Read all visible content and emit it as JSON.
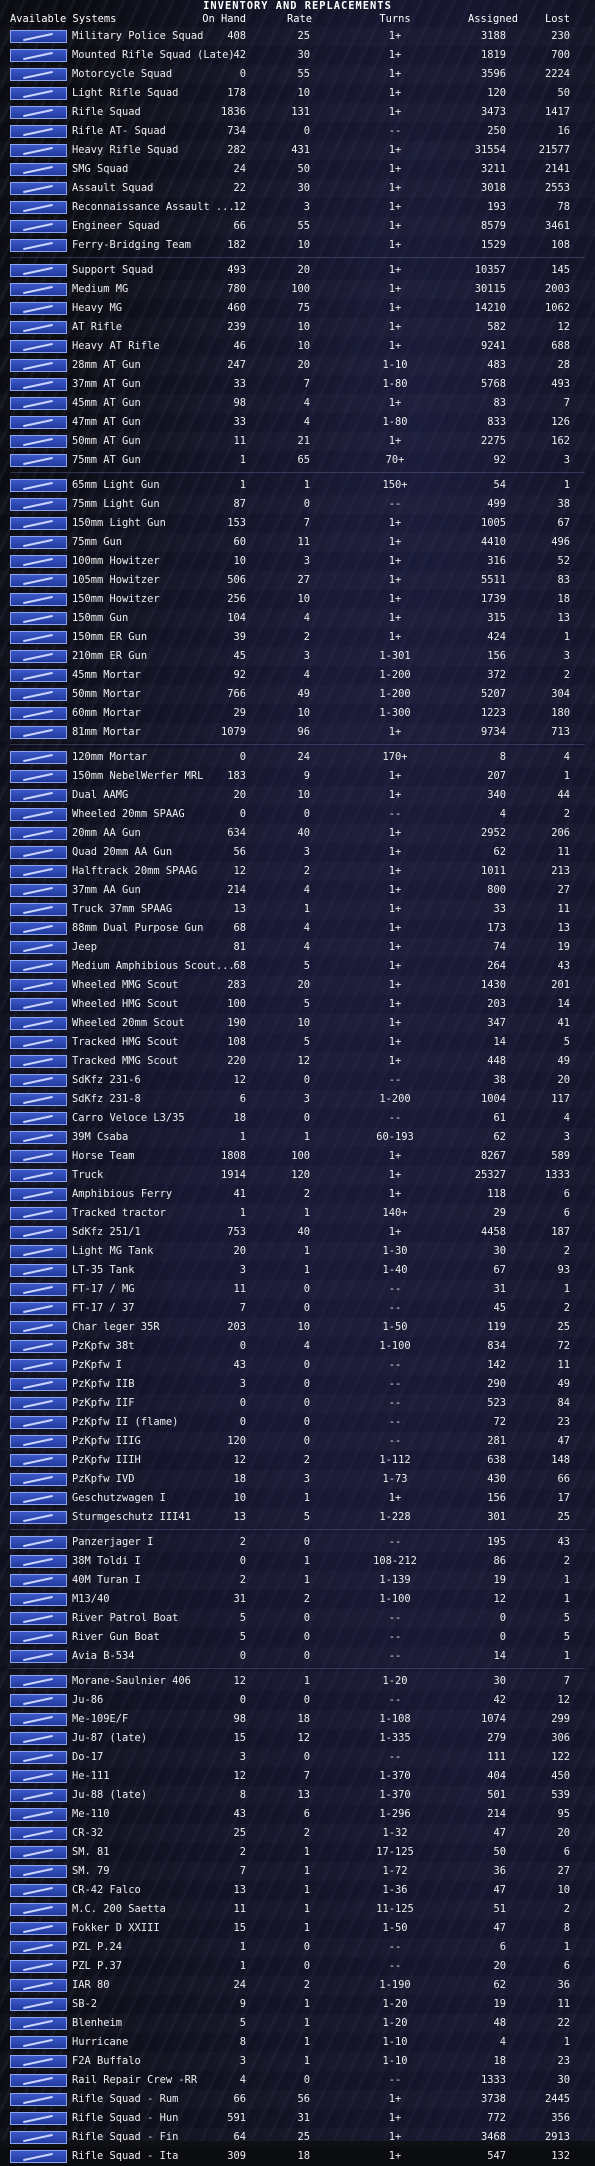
{
  "title": "INVENTORY AND REPLACEMENTS",
  "columns": {
    "systems": "Available Systems",
    "onhand": "On Hand",
    "rate": "Rate",
    "turns": "Turns",
    "assigned": "Assigned",
    "lost": "Lost"
  },
  "rows": [
    [
      "Military Police Squad",
      "408",
      "25",
      "1+",
      "3188",
      "230"
    ],
    [
      "Mounted Rifle Squad (Late)",
      "42",
      "30",
      "1+",
      "1819",
      "700"
    ],
    [
      "Motorcycle Squad",
      "0",
      "55",
      "1+",
      "3596",
      "2224"
    ],
    [
      "Light Rifle Squad",
      "178",
      "10",
      "1+",
      "120",
      "50"
    ],
    [
      "Rifle Squad",
      "1836",
      "131",
      "1+",
      "3473",
      "1417"
    ],
    [
      "Rifle AT- Squad",
      "734",
      "0",
      "--",
      "250",
      "16"
    ],
    [
      "Heavy Rifle Squad",
      "282",
      "431",
      "1+",
      "31554",
      "21577"
    ],
    [
      "SMG Squad",
      "24",
      "50",
      "1+",
      "3211",
      "2141"
    ],
    [
      "Assault Squad",
      "22",
      "30",
      "1+",
      "3018",
      "2553"
    ],
    [
      "Reconnaissance Assault ...",
      "12",
      "3",
      "1+",
      "193",
      "78"
    ],
    [
      "Engineer Squad",
      "66",
      "55",
      "1+",
      "8579",
      "3461"
    ],
    [
      "Ferry-Bridging Team",
      "182",
      "10",
      "1+",
      "1529",
      "108"
    ],
    [
      "Support Squad",
      "493",
      "20",
      "1+",
      "10357",
      "145"
    ],
    [
      "Medium MG",
      "780",
      "100",
      "1+",
      "30115",
      "2003"
    ],
    [
      "Heavy MG",
      "460",
      "75",
      "1+",
      "14210",
      "1062"
    ],
    [
      "AT Rifle",
      "239",
      "10",
      "1+",
      "582",
      "12"
    ],
    [
      "Heavy AT Rifle",
      "46",
      "10",
      "1+",
      "9241",
      "688"
    ],
    [
      "28mm AT Gun",
      "247",
      "20",
      "1-10",
      "483",
      "28"
    ],
    [
      "37mm AT Gun",
      "33",
      "7",
      "1-80",
      "5768",
      "493"
    ],
    [
      "45mm AT Gun",
      "98",
      "4",
      "1+",
      "83",
      "7"
    ],
    [
      "47mm AT Gun",
      "33",
      "4",
      "1-80",
      "833",
      "126"
    ],
    [
      "50mm AT Gun",
      "11",
      "21",
      "1+",
      "2275",
      "162"
    ],
    [
      "75mm AT Gun",
      "1",
      "65",
      "70+",
      "92",
      "3"
    ],
    [
      "65mm Light Gun",
      "1",
      "1",
      "150+",
      "54",
      "1"
    ],
    [
      "75mm Light Gun",
      "87",
      "0",
      "--",
      "499",
      "38"
    ],
    [
      "150mm Light Gun",
      "153",
      "7",
      "1+",
      "1005",
      "67"
    ],
    [
      "75mm Gun",
      "60",
      "11",
      "1+",
      "4410",
      "496"
    ],
    [
      "100mm Howitzer",
      "10",
      "3",
      "1+",
      "316",
      "52"
    ],
    [
      "105mm Howitzer",
      "506",
      "27",
      "1+",
      "5511",
      "83"
    ],
    [
      "150mm Howitzer",
      "256",
      "10",
      "1+",
      "1739",
      "18"
    ],
    [
      "150mm Gun",
      "104",
      "4",
      "1+",
      "315",
      "13"
    ],
    [
      "150mm ER Gun",
      "39",
      "2",
      "1+",
      "424",
      "1"
    ],
    [
      "210mm ER Gun",
      "45",
      "3",
      "1-301",
      "156",
      "3"
    ],
    [
      "45mm Mortar",
      "92",
      "4",
      "1-200",
      "372",
      "2"
    ],
    [
      "50mm Mortar",
      "766",
      "49",
      "1-200",
      "5207",
      "304"
    ],
    [
      "60mm Mortar",
      "29",
      "10",
      "1-300",
      "1223",
      "180"
    ],
    [
      "81mm Mortar",
      "1079",
      "96",
      "1+",
      "9734",
      "713"
    ],
    [
      "120mm Mortar",
      "0",
      "24",
      "170+",
      "8",
      "4"
    ],
    [
      "150mm NebelWerfer MRL",
      "183",
      "9",
      "1+",
      "207",
      "1"
    ],
    [
      "Dual AAMG",
      "20",
      "10",
      "1+",
      "340",
      "44"
    ],
    [
      "Wheeled 20mm SPAAG",
      "0",
      "0",
      "--",
      "4",
      "2"
    ],
    [
      "20mm AA Gun",
      "634",
      "40",
      "1+",
      "2952",
      "206"
    ],
    [
      "Quad 20mm AA Gun",
      "56",
      "3",
      "1+",
      "62",
      "11"
    ],
    [
      "Halftrack 20mm SPAAG",
      "12",
      "2",
      "1+",
      "1011",
      "213"
    ],
    [
      "37mm AA Gun",
      "214",
      "4",
      "1+",
      "800",
      "27"
    ],
    [
      "Truck 37mm SPAAG",
      "13",
      "1",
      "1+",
      "33",
      "11"
    ],
    [
      "88mm Dual Purpose Gun",
      "68",
      "4",
      "1+",
      "173",
      "13"
    ],
    [
      "Jeep",
      "81",
      "4",
      "1+",
      "74",
      "19"
    ],
    [
      "Medium Amphibious Scout...",
      "68",
      "5",
      "1+",
      "264",
      "43"
    ],
    [
      "Wheeled MMG Scout",
      "283",
      "20",
      "1+",
      "1430",
      "201"
    ],
    [
      "Wheeled HMG Scout",
      "100",
      "5",
      "1+",
      "203",
      "14"
    ],
    [
      "Wheeled 20mm Scout",
      "190",
      "10",
      "1+",
      "347",
      "41"
    ],
    [
      "Tracked HMG Scout",
      "108",
      "5",
      "1+",
      "14",
      "5"
    ],
    [
      "Tracked MMG Scout",
      "220",
      "12",
      "1+",
      "448",
      "49"
    ],
    [
      "SdKfz 231-6",
      "12",
      "0",
      "--",
      "38",
      "20"
    ],
    [
      "SdKfz 231-8",
      "6",
      "3",
      "1-200",
      "1004",
      "117"
    ],
    [
      "Carro Veloce L3/35",
      "18",
      "0",
      "--",
      "61",
      "4"
    ],
    [
      "39M Csaba",
      "1",
      "1",
      "60-193",
      "62",
      "3"
    ],
    [
      "Horse Team",
      "1808",
      "100",
      "1+",
      "8267",
      "589"
    ],
    [
      "Truck",
      "1914",
      "120",
      "1+",
      "25327",
      "1333"
    ],
    [
      "Amphibious Ferry",
      "41",
      "2",
      "1+",
      "118",
      "6"
    ],
    [
      "Tracked tractor",
      "1",
      "1",
      "140+",
      "29",
      "6"
    ],
    [
      "SdKfz 251/1",
      "753",
      "40",
      "1+",
      "4458",
      "187"
    ],
    [
      "Light MG Tank",
      "20",
      "1",
      "1-30",
      "30",
      "2"
    ],
    [
      "LT-35 Tank",
      "3",
      "1",
      "1-40",
      "67",
      "93"
    ],
    [
      "FT-17 / MG",
      "11",
      "0",
      "--",
      "31",
      "1"
    ],
    [
      "FT-17 / 37",
      "7",
      "0",
      "--",
      "45",
      "2"
    ],
    [
      "Char leger 35R",
      "203",
      "10",
      "1-50",
      "119",
      "25"
    ],
    [
      "PzKpfw 38t",
      "0",
      "4",
      "1-100",
      "834",
      "72"
    ],
    [
      "PzKpfw I",
      "43",
      "0",
      "--",
      "142",
      "11"
    ],
    [
      "PzKpfw IIB",
      "3",
      "0",
      "--",
      "290",
      "49"
    ],
    [
      "PzKpfw IIF",
      "0",
      "0",
      "--",
      "523",
      "84"
    ],
    [
      "PzKpfw II (flame)",
      "0",
      "0",
      "--",
      "72",
      "23"
    ],
    [
      "PzKpfw IIIG",
      "120",
      "0",
      "--",
      "281",
      "47"
    ],
    [
      "PzKpfw IIIH",
      "12",
      "2",
      "1-112",
      "638",
      "148"
    ],
    [
      "PzKpfw IVD",
      "18",
      "3",
      "1-73",
      "430",
      "66"
    ],
    [
      "Geschutzwagen I",
      "10",
      "1",
      "1+",
      "156",
      "17"
    ],
    [
      "Sturmgeschutz III41",
      "13",
      "5",
      "1-228",
      "301",
      "25"
    ],
    [
      "Panzerjager I",
      "2",
      "0",
      "--",
      "195",
      "43"
    ],
    [
      "38M Toldi I",
      "0",
      "1",
      "108-212",
      "86",
      "2"
    ],
    [
      "40M Turan I",
      "2",
      "1",
      "1-139",
      "19",
      "1"
    ],
    [
      "M13/40",
      "31",
      "2",
      "1-100",
      "12",
      "1"
    ],
    [
      "River Patrol Boat",
      "5",
      "0",
      "--",
      "0",
      "5"
    ],
    [
      "River Gun Boat",
      "5",
      "0",
      "--",
      "0",
      "5"
    ],
    [
      "Avia B-534",
      "0",
      "0",
      "--",
      "14",
      "1"
    ],
    [
      "Morane-Saulnier 406",
      "12",
      "1",
      "1-20",
      "30",
      "7"
    ],
    [
      "Ju-86",
      "0",
      "0",
      "--",
      "42",
      "12"
    ],
    [
      "Me-109E/F",
      "98",
      "18",
      "1-108",
      "1074",
      "299"
    ],
    [
      "Ju-87 (late)",
      "15",
      "12",
      "1-335",
      "279",
      "306"
    ],
    [
      "Do-17",
      "3",
      "0",
      "--",
      "111",
      "122"
    ],
    [
      "He-111",
      "12",
      "7",
      "1-370",
      "404",
      "450"
    ],
    [
      "Ju-88 (late)",
      "8",
      "13",
      "1-370",
      "501",
      "539"
    ],
    [
      "Me-110",
      "43",
      "6",
      "1-296",
      "214",
      "95"
    ],
    [
      "CR-32",
      "25",
      "2",
      "1-32",
      "47",
      "20"
    ],
    [
      "SM. 81",
      "2",
      "1",
      "17-125",
      "50",
      "6"
    ],
    [
      "SM. 79",
      "7",
      "1",
      "1-72",
      "36",
      "27"
    ],
    [
      "CR-42 Falco",
      "13",
      "1",
      "1-36",
      "47",
      "10"
    ],
    [
      "M.C. 200 Saetta",
      "11",
      "1",
      "11-125",
      "51",
      "2"
    ],
    [
      "Fokker D XXIII",
      "15",
      "1",
      "1-50",
      "47",
      "8"
    ],
    [
      "PZL P.24",
      "1",
      "0",
      "--",
      "6",
      "1"
    ],
    [
      "PZL P.37",
      "1",
      "0",
      "--",
      "20",
      "6"
    ],
    [
      "IAR 80",
      "24",
      "2",
      "1-190",
      "62",
      "36"
    ],
    [
      "SB-2",
      "9",
      "1",
      "1-20",
      "19",
      "11"
    ],
    [
      "Blenheim",
      "5",
      "1",
      "1-20",
      "48",
      "22"
    ],
    [
      "Hurricane",
      "8",
      "1",
      "1-10",
      "4",
      "1"
    ],
    [
      "F2A Buffalo",
      "3",
      "1",
      "1-10",
      "18",
      "23"
    ],
    [
      "Rail Repair Crew -RR",
      "4",
      "0",
      "--",
      "1333",
      "30"
    ],
    [
      "Rifle Squad - Rum",
      "66",
      "56",
      "1+",
      "3738",
      "2445"
    ],
    [
      "Rifle Squad - Hun",
      "591",
      "31",
      "1+",
      "772",
      "356"
    ],
    [
      "Rifle Squad - Fin",
      "64",
      "25",
      "1+",
      "3468",
      "2913"
    ],
    [
      "Rifle Squad - Ita",
      "309",
      "18",
      "1+",
      "547",
      "132"
    ]
  ],
  "group_breaks_after": [
    11,
    22,
    36,
    77,
    84
  ]
}
